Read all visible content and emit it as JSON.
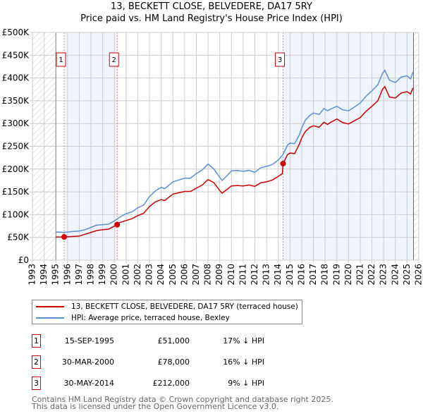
{
  "header": {
    "title": "13, BECKETT CLOSE, BELVEDERE, DA17 5RY",
    "subtitle": "Price paid vs. HM Land Registry's House Price Index (HPI)"
  },
  "chart_data": {
    "type": "line",
    "title": "13, BECKETT CLOSE, BELVEDERE, DA17 5RY",
    "subtitle": "Price paid vs. HM Land Registry's House Price Index (HPI)",
    "xlim": [
      1993,
      2026
    ],
    "ylim": [
      0,
      500000
    ],
    "x_ticks": [
      "1993",
      "1994",
      "1995",
      "1996",
      "1997",
      "1998",
      "1999",
      "2000",
      "2001",
      "2002",
      "2003",
      "2004",
      "2005",
      "2006",
      "2007",
      "2008",
      "2009",
      "2010",
      "2011",
      "2012",
      "2013",
      "2014",
      "2015",
      "2016",
      "2017",
      "2018",
      "2019",
      "2020",
      "2021",
      "2022",
      "2023",
      "2024",
      "2025",
      "2026"
    ],
    "y_ticks": [
      {
        "v": 0,
        "label": "£0"
      },
      {
        "v": 50000,
        "label": "£50K"
      },
      {
        "v": 100000,
        "label": "£100K"
      },
      {
        "v": 150000,
        "label": "£150K"
      },
      {
        "v": 200000,
        "label": "£200K"
      },
      {
        "v": 250000,
        "label": "£250K"
      },
      {
        "v": 300000,
        "label": "£300K"
      },
      {
        "v": 350000,
        "label": "£350K"
      },
      {
        "v": 400000,
        "label": "£400K"
      },
      {
        "v": 450000,
        "label": "£450K"
      },
      {
        "v": 500000,
        "label": "£500K"
      }
    ],
    "grid": true,
    "legend_placement": "below",
    "series": [
      {
        "name": "13, BECKETT CLOSE, BELVEDERE, DA17 5RY (terraced house)",
        "color": "#cc0000",
        "x": [
          1995,
          1995.7,
          1996.5,
          1997,
          1997.5,
          1998,
          1998.5,
          1999,
          1999.5,
          2000.24,
          2000.5,
          2001,
          2001.5,
          2002,
          2002.5,
          2003,
          2003.5,
          2004,
          2004.3,
          2005,
          2005.5,
          2006,
          2006.5,
          2007,
          2007.5,
          2008,
          2008.5,
          2009,
          2009.2,
          2009.6,
          2010,
          2010.5,
          2011,
          2011.5,
          2012,
          2012.5,
          2013,
          2013.5,
          2014,
          2014.35,
          2014.41,
          2014.8,
          2015,
          2015.4,
          2015.8,
          2016,
          2016.3,
          2016.7,
          2017,
          2017.5,
          2017.9,
          2018.2,
          2018.5,
          2019,
          2019.5,
          2020,
          2020.5,
          2021,
          2021.5,
          2022,
          2022.5,
          2022.9,
          2023.1,
          2023.5,
          2024,
          2024.5,
          2025,
          2025.3,
          2025.5
        ],
        "y": [
          51,
          51,
          52,
          53,
          57,
          61,
          65,
          67,
          68,
          78,
          83,
          87,
          91,
          98,
          103,
          118,
          128,
          133,
          131,
          145,
          148,
          151,
          151,
          158,
          165,
          177,
          170,
          153,
          147,
          155,
          163,
          164,
          163,
          165,
          162,
          170,
          172,
          176,
          184,
          190,
          212,
          232,
          235,
          234,
          255,
          268,
          282,
          292,
          295,
          292,
          303,
          298,
          303,
          310,
          302,
          299,
          306,
          313,
          327,
          338,
          350,
          375,
          381,
          358,
          356,
          367,
          370,
          365,
          378
        ],
        "y_units": "thousands GBP"
      },
      {
        "name": "HPI: Average price, terraced house, Bexley",
        "color": "#5b8fd6",
        "x": [
          1995,
          1995.7,
          1996.5,
          1997,
          1997.5,
          1998,
          1998.5,
          1999,
          1999.5,
          2000,
          2000.5,
          2001,
          2001.5,
          2002,
          2002.5,
          2003,
          2003.5,
          2004,
          2004.3,
          2005,
          2005.5,
          2006,
          2006.5,
          2007,
          2007.5,
          2008,
          2008.5,
          2009,
          2009.2,
          2009.6,
          2010,
          2010.5,
          2011,
          2011.5,
          2012,
          2012.5,
          2013,
          2013.5,
          2014,
          2014.4,
          2014.8,
          2015,
          2015.4,
          2015.8,
          2016,
          2016.3,
          2016.7,
          2017,
          2017.5,
          2017.9,
          2018.2,
          2018.5,
          2019,
          2019.5,
          2020,
          2020.5,
          2021,
          2021.5,
          2022,
          2022.5,
          2022.9,
          2023.1,
          2023.5,
          2024,
          2024.5,
          2025,
          2025.3,
          2025.5
        ],
        "y": [
          62,
          61,
          63,
          64,
          67,
          72,
          77,
          78,
          79,
          86,
          95,
          102,
          106,
          115,
          121,
          140,
          152,
          160,
          157,
          172,
          176,
          180,
          180,
          190,
          198,
          211,
          200,
          182,
          175,
          185,
          196,
          197,
          195,
          197,
          193,
          203,
          206,
          210,
          220,
          232,
          253,
          257,
          256,
          275,
          290,
          307,
          318,
          323,
          320,
          333,
          328,
          332,
          338,
          330,
          328,
          336,
          345,
          360,
          372,
          385,
          410,
          417,
          395,
          390,
          402,
          405,
          398,
          413
        ],
        "y_units": "thousands GBP"
      }
    ],
    "sales": [
      {
        "id": "1",
        "x": 1995.71,
        "value": 51000
      },
      {
        "id": "2",
        "x": 2000.24,
        "value": 78000
      },
      {
        "id": "3",
        "x": 2014.41,
        "value": 212000
      }
    ]
  },
  "legend": {
    "items": [
      "13, BECKETT CLOSE, BELVEDERE, DA17 5RY (terraced house)",
      "HPI: Average price, terraced house, Bexley"
    ]
  },
  "transactions": [
    {
      "id": "1",
      "date": "15-SEP-1995",
      "price": "£51,000",
      "hpi": "17% ↓ HPI"
    },
    {
      "id": "2",
      "date": "30-MAR-2000",
      "price": "£78,000",
      "hpi": "16% ↓ HPI"
    },
    {
      "id": "3",
      "date": "30-MAY-2014",
      "price": "£212,000",
      "hpi": "9% ↓ HPI"
    }
  ],
  "footer": {
    "line1": "Contains HM Land Registry data © Crown copyright and database right 2025.",
    "line2": "This data is licensed under the Open Government Licence v3.0."
  }
}
